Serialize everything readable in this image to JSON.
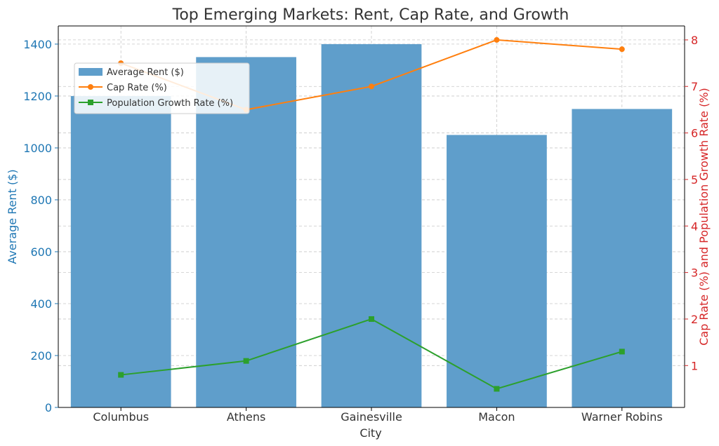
{
  "chart_data": {
    "type": "bar",
    "title": "Top Emerging Markets: Rent, Cap Rate, and Growth",
    "xlabel": "City",
    "ylabel_left": "Average Rent ($)",
    "ylabel_right": "Cap Rate (%) and Population Growth Rate (%)",
    "categories": [
      "Columbus",
      "Athens",
      "Gainesville",
      "Macon",
      "Warner Robins"
    ],
    "ylim_left": [
      0,
      1470
    ],
    "ylim_right": [
      0.1,
      8.3
    ],
    "yticks_left": [
      0,
      200,
      400,
      600,
      800,
      1000,
      1200,
      1400
    ],
    "yticks_right": [
      1,
      2,
      3,
      4,
      5,
      6,
      7,
      8
    ],
    "grid": true,
    "legend_position": "upper-left",
    "series": [
      {
        "name": "Average Rent ($)",
        "type": "bar",
        "axis": "left",
        "values": [
          1200,
          1350,
          1400,
          1050,
          1150
        ],
        "color": "#5f9ecb"
      },
      {
        "name": "Cap Rate (%)",
        "type": "line",
        "axis": "right",
        "marker": "circle",
        "values": [
          7.5,
          6.5,
          7.0,
          8.0,
          7.8
        ],
        "color": "#ff7f0e"
      },
      {
        "name": "Population Growth Rate (%)",
        "type": "line",
        "axis": "right",
        "marker": "square",
        "values": [
          0.8,
          1.1,
          2.0,
          0.5,
          1.3
        ],
        "color": "#2ca02c"
      }
    ],
    "colors": {
      "left_axis": "#1f77b4",
      "right_axis": "#d62728"
    }
  }
}
